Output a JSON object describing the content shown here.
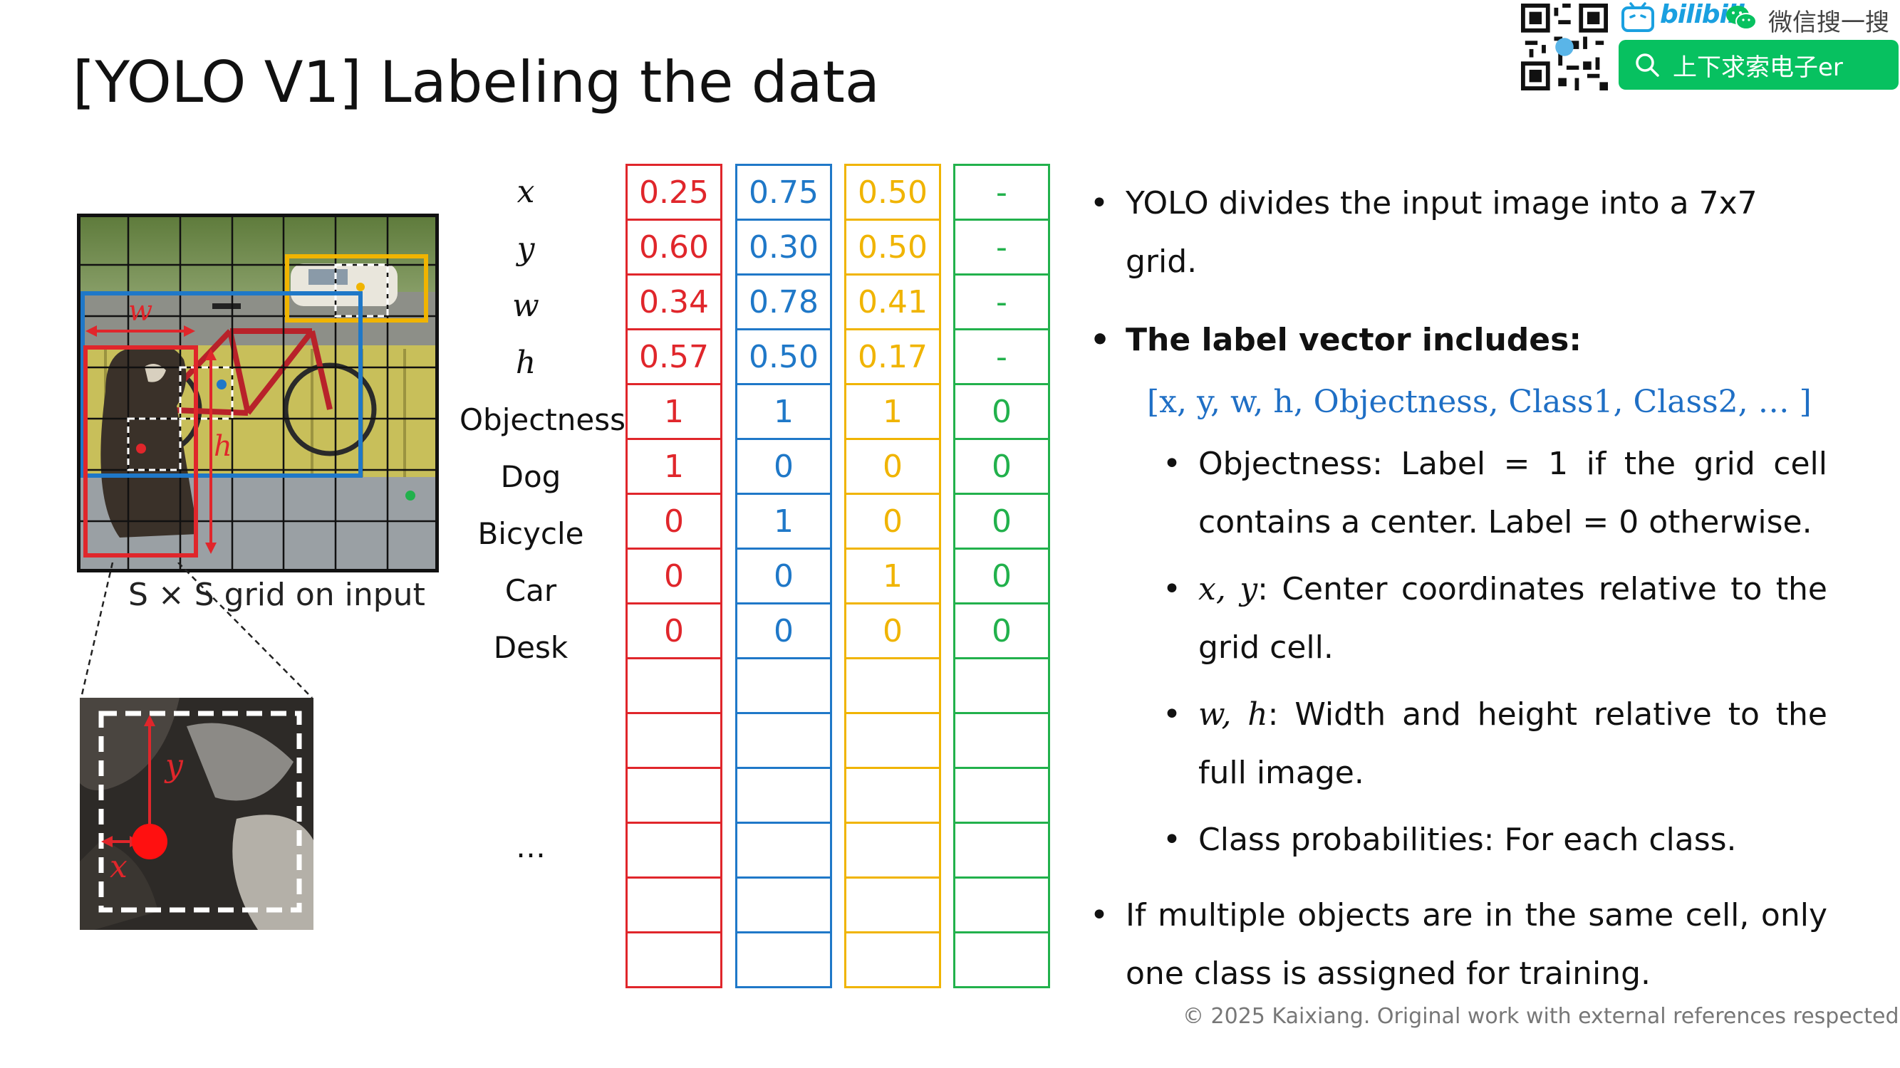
{
  "title": "[YOLO V1] Labeling the data",
  "header": {
    "bilibili_text": "bilibili",
    "wechat_text": "微信搜一搜",
    "search_text": "上下求索电子er",
    "icons": [
      "qr-code-icon",
      "bilibili-tv-icon",
      "wechat-icon",
      "search-icon"
    ]
  },
  "illustration": {
    "grid_caption": "S × S grid on input",
    "w_label": "w",
    "h_label": "h",
    "x_label": "x",
    "y_label": "y"
  },
  "row_labels": [
    "x",
    "y",
    "w",
    "h",
    "Objectness",
    "Dog",
    "Bicycle",
    "Car",
    "Desk"
  ],
  "ellipsis": "…",
  "vectors": [
    {
      "color": "#e0262b",
      "values": [
        "0.25",
        "0.60",
        "0.34",
        "0.57",
        "1",
        "1",
        "0",
        "0",
        "0",
        "",
        "",
        "",
        "",
        "",
        ""
      ]
    },
    {
      "color": "#1f78c8",
      "values": [
        "0.75",
        "0.30",
        "0.78",
        "0.50",
        "1",
        "0",
        "1",
        "0",
        "0",
        "",
        "",
        "",
        "",
        "",
        ""
      ]
    },
    {
      "color": "#f0b400",
      "values": [
        "0.50",
        "0.50",
        "0.41",
        "0.17",
        "1",
        "0",
        "0",
        "1",
        "0",
        "",
        "",
        "",
        "",
        "",
        ""
      ]
    },
    {
      "color": "#22b14c",
      "values": [
        "-",
        "-",
        "-",
        "-",
        "0",
        "0",
        "0",
        "0",
        "0",
        "",
        "",
        "",
        "",
        "",
        ""
      ]
    }
  ],
  "bullets": {
    "b1": "YOLO divides the input image into a 7x7 grid.",
    "b2": "The label vector includes:",
    "formula": "[x, y, w, h, Objectness, Class1, Class2, … ]",
    "sub1": "Objectness: Label = 1 if the grid cell contains a center. Label = 0 otherwise.",
    "sub2_math": "x, y",
    "sub2": ": Center coordinates relative to the grid cell.",
    "sub3_math": "w, h",
    "sub3": ": Width and height relative to the full image.",
    "sub4": "Class probabilities: For each class.",
    "b3": "If multiple objects are in the same cell, only one class is assigned for training."
  },
  "copyright": "© 2025 Kaixiang. Original work with external references respected."
}
